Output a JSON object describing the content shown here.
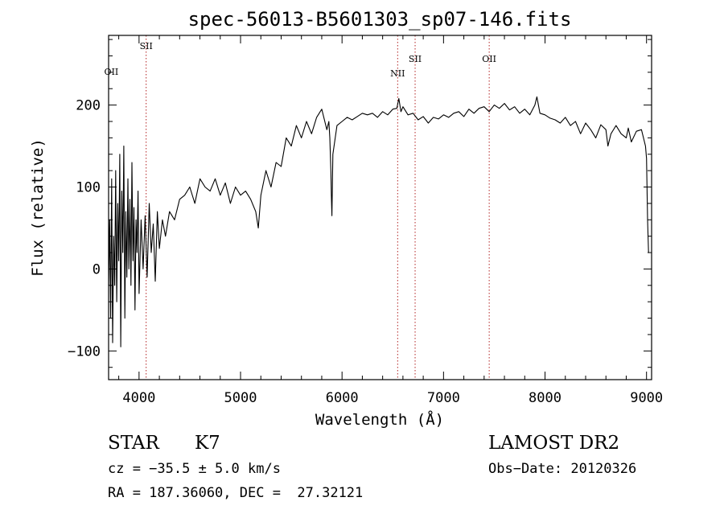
{
  "chart_data": {
    "type": "line",
    "title": "spec-56013-B5601303_sp07-146.fits",
    "xlabel": "Wavelength (Å)",
    "ylabel": "Flux (relative)",
    "xlim": [
      3700,
      9050
    ],
    "ylim": [
      -135,
      285
    ],
    "x_ticks": [
      4000,
      5000,
      6000,
      7000,
      8000,
      9000
    ],
    "y_ticks": [
      -100,
      0,
      100,
      200
    ],
    "grid": false,
    "series": [
      {
        "color": "#000000",
        "x": [
          3700,
          3710,
          3720,
          3730,
          3740,
          3750,
          3760,
          3770,
          3780,
          3790,
          3800,
          3810,
          3820,
          3830,
          3840,
          3850,
          3860,
          3870,
          3880,
          3890,
          3900,
          3910,
          3920,
          3930,
          3940,
          3950,
          3960,
          3970,
          3980,
          3990,
          4000,
          4020,
          4040,
          4060,
          4080,
          4100,
          4120,
          4140,
          4160,
          4180,
          4200,
          4230,
          4260,
          4300,
          4350,
          4400,
          4450,
          4500,
          4550,
          4600,
          4650,
          4700,
          4750,
          4800,
          4850,
          4900,
          4950,
          5000,
          5050,
          5100,
          5150,
          5175,
          5200,
          5250,
          5300,
          5350,
          5400,
          5450,
          5500,
          5550,
          5600,
          5650,
          5700,
          5750,
          5800,
          5850,
          5870,
          5880,
          5890,
          5895,
          5900,
          5910,
          5950,
          6000,
          6050,
          6100,
          6150,
          6200,
          6250,
          6300,
          6350,
          6400,
          6450,
          6500,
          6540,
          6560,
          6580,
          6600,
          6650,
          6700,
          6750,
          6800,
          6850,
          6900,
          6950,
          7000,
          7050,
          7100,
          7150,
          7200,
          7250,
          7300,
          7350,
          7400,
          7450,
          7500,
          7550,
          7600,
          7650,
          7700,
          7750,
          7800,
          7850,
          7900,
          7920,
          7950,
          8000,
          8050,
          8100,
          8150,
          8200,
          8250,
          8300,
          8350,
          8400,
          8450,
          8500,
          8550,
          8600,
          8620,
          8650,
          8700,
          8750,
          8800,
          8820,
          8850,
          8900,
          8950,
          8970,
          8990,
          9000,
          9010,
          9020
        ],
        "y": [
          -20,
          60,
          -60,
          110,
          -90,
          40,
          -20,
          120,
          -40,
          80,
          10,
          140,
          -95,
          95,
          20,
          150,
          -60,
          70,
          -10,
          110,
          0,
          85,
          -20,
          130,
          10,
          75,
          -50,
          60,
          20,
          95,
          -30,
          60,
          0,
          65,
          -10,
          80,
          20,
          55,
          -15,
          70,
          25,
          60,
          40,
          70,
          60,
          85,
          90,
          100,
          80,
          110,
          100,
          95,
          110,
          90,
          105,
          80,
          100,
          90,
          95,
          85,
          70,
          50,
          90,
          120,
          100,
          130,
          125,
          160,
          150,
          175,
          160,
          180,
          165,
          185,
          195,
          170,
          180,
          160,
          120,
          90,
          65,
          140,
          175,
          180,
          185,
          182,
          186,
          190,
          188,
          190,
          185,
          192,
          188,
          195,
          196,
          208,
          192,
          198,
          188,
          190,
          182,
          186,
          178,
          185,
          183,
          188,
          185,
          190,
          192,
          186,
          195,
          190,
          196,
          198,
          192,
          200,
          196,
          202,
          194,
          198,
          190,
          195,
          188,
          200,
          210,
          190,
          188,
          184,
          182,
          178,
          185,
          175,
          180,
          165,
          178,
          170,
          160,
          176,
          170,
          150,
          165,
          175,
          165,
          160,
          172,
          155,
          168,
          170,
          160,
          150,
          135,
          60,
          20
        ]
      }
    ],
    "annotations": [
      {
        "label": "OII",
        "wavelength": 3727,
        "has_line": false
      },
      {
        "label": "SII",
        "wavelength": 4070,
        "has_line": true
      },
      {
        "label": "NII",
        "wavelength": 6548,
        "has_line": true
      },
      {
        "label": "SII",
        "wavelength": 6720,
        "has_line": true
      },
      {
        "label": "OII",
        "wavelength": 7450,
        "has_line": true
      }
    ],
    "annotation_color": "#b22222"
  },
  "info": {
    "obj_class": "STAR",
    "subclass": "K7",
    "survey": "LAMOST DR2",
    "cz": "cz = −35.5 ± 5.0 km/s",
    "obs_date": "Obs−Date: 20120326",
    "coords": "RA = 187.36060, DEC =  27.32121"
  }
}
